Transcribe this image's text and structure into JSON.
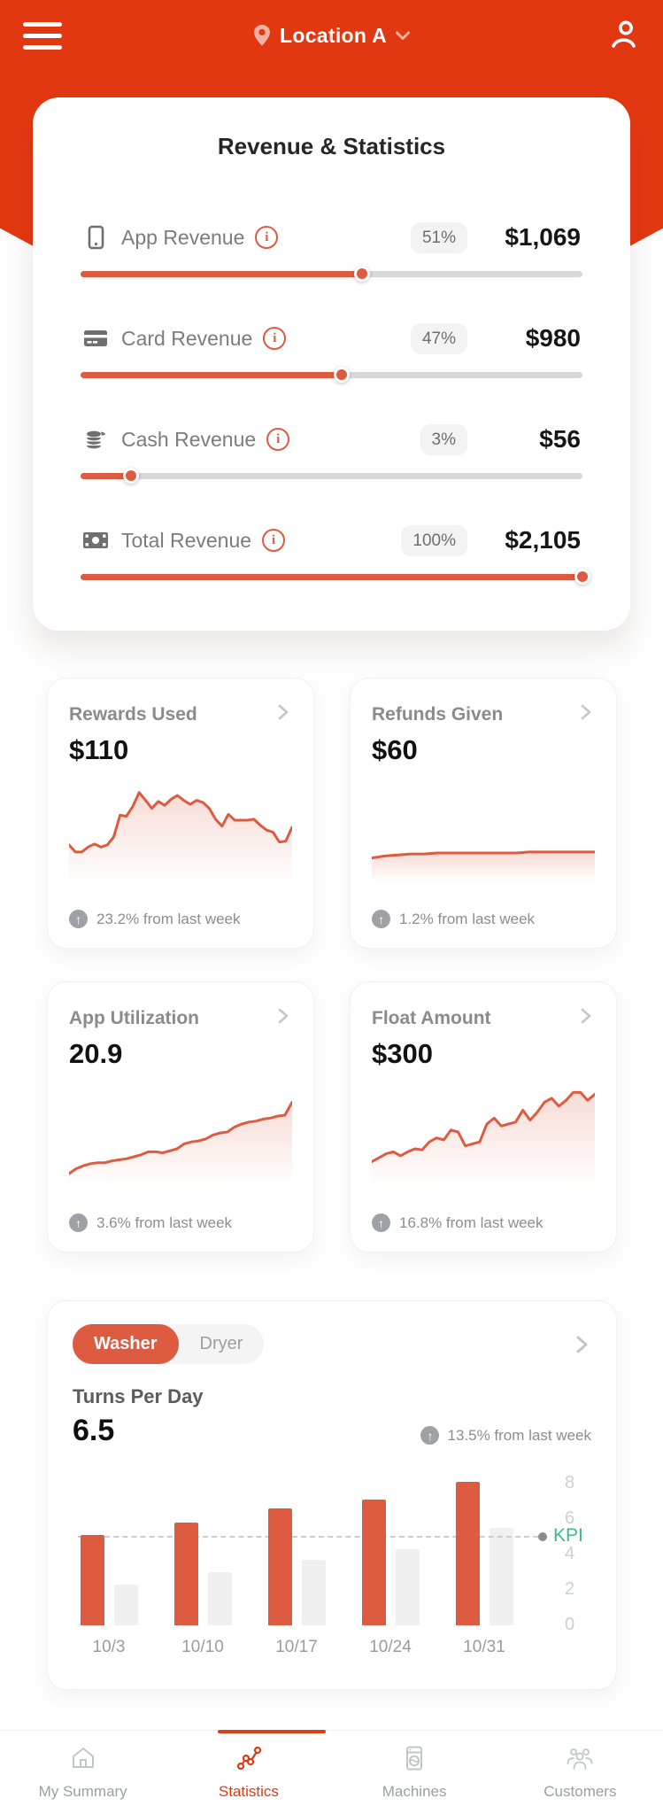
{
  "colors": {
    "primary": "#E23812",
    "accent": "#DD5C41",
    "kpi_green": "#3DBA8B",
    "bar_gray": "#F0F0F0"
  },
  "header": {
    "location_label": "Location A",
    "icons": [
      "menu-icon",
      "location-pin-icon",
      "chevron-down-icon",
      "profile-icon"
    ]
  },
  "revenue_card": {
    "title": "Revenue & Statistics",
    "rows": [
      {
        "icon": "smartphone-icon",
        "label": "App Revenue",
        "percent": "51%",
        "amount": "$1,069",
        "slider_pct": 56
      },
      {
        "icon": "credit-card-icon",
        "label": "Card Revenue",
        "percent": "47%",
        "amount": "$980",
        "slider_pct": 52
      },
      {
        "icon": "coins-icon",
        "label": "Cash Revenue",
        "percent": "3%",
        "amount": "$56",
        "slider_pct": 10
      },
      {
        "icon": "cash-bill-icon",
        "label": "Total Revenue",
        "percent": "100%",
        "amount": "$2,105",
        "slider_pct": 100
      }
    ]
  },
  "stat_cards": [
    {
      "title": "Rewards Used",
      "value": "$110",
      "change": "23.2% from last week",
      "spark": [
        33,
        26,
        26,
        31,
        34,
        31,
        33,
        41,
        63,
        62,
        72,
        86,
        78,
        70,
        77,
        73,
        79,
        83,
        78,
        74,
        78,
        76,
        70,
        59,
        52,
        64,
        58,
        58,
        58,
        59,
        53,
        48,
        46,
        36,
        37,
        51
      ]
    },
    {
      "title": "Refunds Given",
      "value": "$60",
      "change": "1.2% from last week",
      "spark": [
        20,
        22,
        23,
        24,
        24,
        25,
        25,
        25,
        25,
        25,
        25,
        25,
        26,
        26,
        26,
        26,
        26,
        26
      ]
    },
    {
      "title": "App Utilization",
      "value": "20.9",
      "change": "3.6% from last week",
      "spark": [
        8,
        13,
        16,
        18,
        19,
        19,
        21,
        22,
        23,
        25,
        27,
        30,
        30,
        29,
        31,
        33,
        38,
        40,
        41,
        43,
        47,
        49,
        50,
        55,
        58,
        60,
        61,
        63,
        64,
        66,
        67,
        80
      ]
    },
    {
      "title": "Float Amount",
      "value": "$300",
      "change": "16.8% from last week",
      "spark": [
        20,
        24,
        28,
        30,
        26,
        30,
        33,
        32,
        40,
        44,
        42,
        52,
        50,
        36,
        38,
        40,
        58,
        64,
        56,
        58,
        60,
        72,
        62,
        70,
        80,
        84,
        76,
        82,
        90,
        90,
        82,
        88
      ]
    }
  ],
  "turns_card": {
    "toggle_options": [
      {
        "label": "Washer",
        "active": true
      },
      {
        "label": "Dryer",
        "active": false
      }
    ],
    "metric_label": "Turns Per Day",
    "metric_value": "6.5",
    "change": "13.5% from last week",
    "chart_data": {
      "type": "bar",
      "categories": [
        "10/3",
        "10/10",
        "10/17",
        "10/24",
        "10/31"
      ],
      "series": [
        {
          "name": "washer turns",
          "color": "#DD5C41",
          "values": [
            5.1,
            5.8,
            6.6,
            7.1,
            8.1
          ]
        },
        {
          "name": "comparison turns",
          "color": "#F0F0F0",
          "values": [
            2.3,
            3.0,
            3.7,
            4.3,
            5.5
          ]
        }
      ],
      "kpi": {
        "label": "KPI",
        "value": 5
      },
      "y_ticks": [
        "8",
        "6",
        "4",
        "2",
        "0"
      ],
      "ylim": [
        0,
        8.4
      ],
      "legend_position": "none",
      "grid": false
    }
  },
  "bottom_nav": {
    "items": [
      {
        "icon": "home-icon",
        "label": "My Summary",
        "active": false
      },
      {
        "icon": "statistics-icon",
        "label": "Statistics",
        "active": true
      },
      {
        "icon": "washing-machine-icon",
        "label": "Machines",
        "active": false
      },
      {
        "icon": "customers-icon",
        "label": "Customers",
        "active": false
      }
    ]
  }
}
